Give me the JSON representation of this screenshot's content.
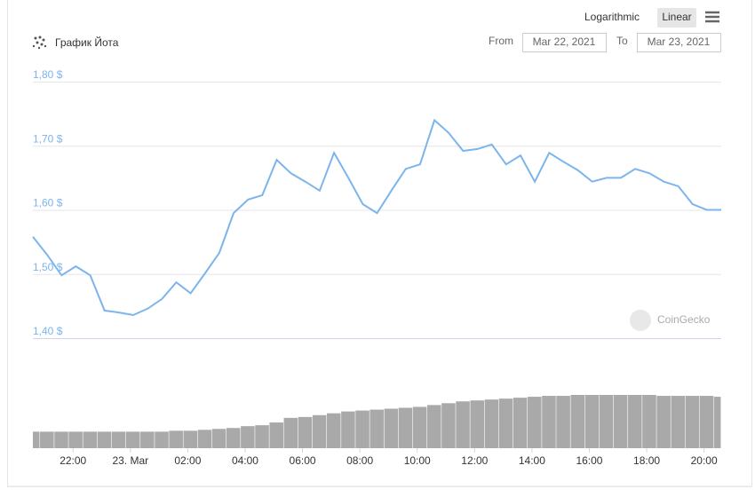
{
  "controls": {
    "scale_options": [
      "Logarithmic",
      "Linear"
    ],
    "from_label": "From",
    "from_date": "Mar 22, 2021",
    "to_label": "To",
    "to_date": "Mar 23, 2021"
  },
  "watermark": "CoinGecko",
  "chart_data": [
    {
      "type": "line",
      "title": "График Йота",
      "color": "#7cb5ec",
      "grid": true,
      "x": [
        -3.4,
        -2.9,
        -2.4,
        -1.9,
        -1.4,
        -0.9,
        -0.4,
        0.1,
        0.6,
        1.1,
        1.6,
        2.1,
        2.6,
        3.1,
        3.6,
        4.1,
        4.6,
        5.1,
        5.6,
        6.1,
        6.6,
        7.1,
        7.6,
        8.1,
        8.6,
        9.1,
        9.6,
        10.1,
        10.6,
        11.1,
        11.6,
        12.1,
        12.6,
        13.1,
        13.6,
        14.1,
        14.6,
        15.1,
        15.6,
        16.1,
        16.6,
        17.1,
        17.6,
        18.1,
        18.6,
        19.1,
        19.6,
        20.1,
        20.6
      ],
      "values": [
        1.558,
        1.53,
        1.498,
        1.512,
        1.498,
        1.443,
        1.44,
        1.436,
        1.446,
        1.461,
        1.487,
        1.47,
        1.501,
        1.533,
        1.595,
        1.616,
        1.623,
        1.678,
        1.657,
        1.644,
        1.63,
        1.689,
        1.65,
        1.609,
        1.595,
        1.63,
        1.664,
        1.671,
        1.74,
        1.72,
        1.692,
        1.695,
        1.702,
        1.671,
        1.685,
        1.644,
        1.689,
        1.675,
        1.662,
        1.644,
        1.65,
        1.65,
        1.664,
        1.657,
        1.644,
        1.637,
        1.609,
        1.6,
        1.6
      ],
      "xlim": [
        -3.4,
        20.6
      ],
      "xticks": [
        {
          "value": -2,
          "label": "22:00"
        },
        {
          "value": 0,
          "label": "23. Mar"
        },
        {
          "value": 2,
          "label": "02:00"
        },
        {
          "value": 4,
          "label": "04:00"
        },
        {
          "value": 6,
          "label": "06:00"
        },
        {
          "value": 8,
          "label": "08:00"
        },
        {
          "value": 10,
          "label": "10:00"
        },
        {
          "value": 12,
          "label": "12:00"
        },
        {
          "value": 14,
          "label": "14:00"
        },
        {
          "value": 16,
          "label": "16:00"
        },
        {
          "value": 18,
          "label": "18:00"
        },
        {
          "value": 20,
          "label": "20:00"
        }
      ],
      "ylim": [
        1.4,
        1.8
      ],
      "yticks": [
        {
          "value": 1.4,
          "label": "1,40 $"
        },
        {
          "value": 1.5,
          "label": "1,50 $"
        },
        {
          "value": 1.6,
          "label": "1,60 $"
        },
        {
          "value": 1.7,
          "label": "1,70 $"
        },
        {
          "value": 1.8,
          "label": "1,80 $"
        }
      ]
    },
    {
      "type": "bar",
      "color": "#a9a9a9",
      "x": [
        -3.4,
        -2.9,
        -2.4,
        -1.9,
        -1.4,
        -0.9,
        -0.4,
        0.1,
        0.6,
        1.1,
        1.6,
        2.1,
        2.6,
        3.1,
        3.6,
        4.1,
        4.6,
        5.1,
        5.6,
        6.1,
        6.6,
        7.1,
        7.6,
        8.1,
        8.6,
        9.1,
        9.6,
        10.1,
        10.6,
        11.1,
        11.6,
        12.1,
        12.6,
        13.1,
        13.6,
        14.1,
        14.6,
        15.1,
        15.6,
        16.1,
        16.6,
        17.1,
        17.6,
        18.1,
        18.6,
        19.1,
        19.6,
        20.1,
        20.6
      ],
      "values": [
        18,
        18,
        18,
        18,
        18,
        18,
        18,
        18,
        18,
        18,
        19,
        19,
        20,
        21,
        22,
        24,
        25,
        28,
        33,
        34,
        36,
        38,
        40,
        41,
        42,
        43,
        44,
        45,
        47,
        49,
        51,
        52,
        53,
        54,
        55,
        56,
        57,
        57,
        58,
        58,
        58,
        58,
        58,
        58,
        57,
        57,
        57,
        57,
        56
      ],
      "xlim": [
        -3.4,
        20.6
      ]
    }
  ]
}
